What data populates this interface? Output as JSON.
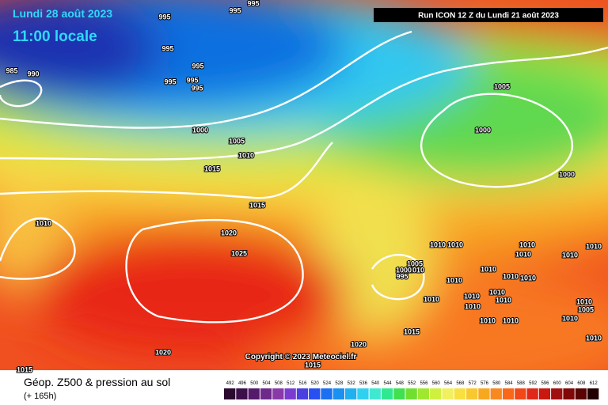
{
  "header": {
    "date": "Lundi 28 août 2023",
    "time": "11:00 locale",
    "run": "Run ICON 12 Z du Lundi 21 août 2023"
  },
  "copyright": "Copyright © 2023 Meteociel.fr",
  "footer": {
    "title": "Géop. Z500 & pression au sol",
    "lead": "(+ 165h)"
  },
  "isobars": [
    "995",
    "995",
    "995",
    "995",
    "985",
    "990",
    "995",
    "995",
    "995",
    "995",
    "1005",
    "1000",
    "1005",
    "1010",
    "1015",
    "1000",
    "1000",
    "1015",
    "1010",
    "1020",
    "1025",
    "1010",
    "1010",
    "1010",
    "1010",
    "1010",
    "1010",
    "1005",
    "1010",
    "1000",
    "995",
    "1010",
    "1010",
    "1010",
    "1010",
    "1010",
    "1010",
    "1010",
    "1010",
    "1010",
    "1005",
    "1010",
    "1010",
    "1010",
    "1015",
    "1010",
    "1020",
    "1020",
    "1015",
    "1015",
    "1010"
  ],
  "legend": {
    "labels": [
      492,
      496,
      500,
      504,
      508,
      512,
      516,
      520,
      524,
      528,
      532,
      536,
      540,
      544,
      548,
      552,
      556,
      560,
      564,
      568,
      572,
      576,
      580,
      584,
      588,
      592,
      596,
      600,
      604,
      608,
      612
    ],
    "colors": [
      "#2a0a2e",
      "#3d0f4a",
      "#561a6a",
      "#6e2a8a",
      "#8a3aa8",
      "#7a3cd0",
      "#4a40e0",
      "#2850f0",
      "#1a70f0",
      "#1a90f0",
      "#20b0f0",
      "#30d0f0",
      "#40e8d0",
      "#30e890",
      "#40e050",
      "#70e030",
      "#a0e830",
      "#d0f040",
      "#f0f060",
      "#f8e040",
      "#f8c830",
      "#f8a820",
      "#f88820",
      "#f86818",
      "#f04818",
      "#e02818",
      "#c81810",
      "#a01010",
      "#800808",
      "#580404",
      "#200000"
    ]
  }
}
